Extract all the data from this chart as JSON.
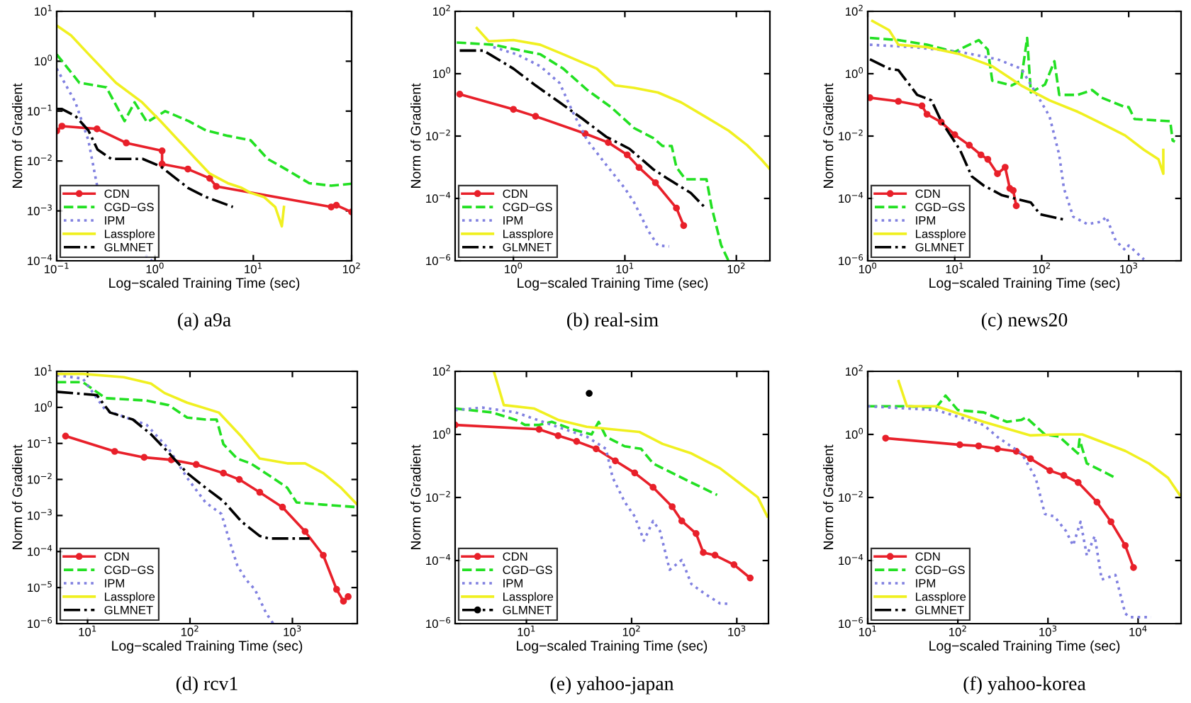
{
  "chart_data": [
    {
      "type": "line",
      "title": "(a) a9a",
      "xlabel": "Log−scaled Training Time (sec)",
      "ylabel": "Norm of Gradient",
      "log": "xy",
      "legend": "bottom left",
      "grid": false,
      "xlim": [
        0.1,
        100
      ],
      "ylim": [
        0.0001,
        10
      ],
      "xticks": [
        {
          "value": 0.1,
          "label": "10$^{−1}$"
        },
        {
          "value": 1,
          "label": "10$^{0}$"
        },
        {
          "value": 10,
          "label": "10$^{1}$"
        },
        {
          "value": 100,
          "label": "10$^{2}$"
        }
      ],
      "yticks": [
        {
          "value": 0.0001,
          "label": "10$^{−4}$"
        },
        {
          "value": 0.001,
          "label": "10$^{−3}$"
        },
        {
          "value": 0.01,
          "label": "10$^{−2}$"
        },
        {
          "value": 0.1,
          "label": "10$^{−1}$"
        },
        {
          "value": 1,
          "label": "10$^{0}$"
        },
        {
          "value": 10,
          "label": "10$^{1}$"
        }
      ],
      "series": [
        {
          "name": "CDN",
          "color": "#e8202a",
          "line_style": "solid",
          "marker": "circle",
          "x": [
            0.1,
            0.113,
            0.257,
            0.51,
            1.18,
            1.18,
            2.16,
            3.6,
            4.2,
            62,
            70,
            100
          ],
          "values": [
            0.04,
            0.05,
            0.044,
            0.023,
            0.016,
            0.0087,
            0.0069,
            0.0045,
            0.0031,
            0.0012,
            0.0013,
            0.00095
          ]
        },
        {
          "name": "CGD−GS",
          "color": "#22e022",
          "line_style": "dashed",
          "marker": "none",
          "x": [
            0.1,
            0.17,
            0.32,
            0.49,
            0.62,
            0.83,
            1.27,
            2.2,
            3.3,
            5.5,
            9.4,
            14,
            21,
            37,
            62,
            100
          ],
          "values": [
            1.37,
            0.37,
            0.3,
            0.063,
            0.15,
            0.06,
            0.1,
            0.063,
            0.041,
            0.032,
            0.026,
            0.011,
            0.007,
            0.0036,
            0.0032,
            0.0035
          ]
        },
        {
          "name": "IPM",
          "color": "#8080e0",
          "line_style": "dotted",
          "marker": "none",
          "x": [
            0.1,
            0.155,
            0.21,
            0.26,
            0.45,
            0.8,
            0.93
          ],
          "values": [
            0.71,
            0.15,
            0.026,
            0.0029,
            null,
            0.00013,
            0.0001
          ]
        },
        {
          "name": "Lassplore",
          "color": "#f0f020",
          "line_style": "solid",
          "marker": "none",
          "x": [
            0.1,
            0.14,
            0.21,
            0.4,
            0.74,
            1.14,
            1.73,
            2.6,
            3.6,
            5.5,
            7.6,
            9.4,
            12.8,
            16.7,
            19.5,
            20.5
          ],
          "values": [
            5.2,
            3.3,
            1.4,
            0.37,
            0.15,
            0.063,
            0.026,
            0.011,
            0.0056,
            0.0036,
            0.0029,
            0.0023,
            0.0019,
            0.0012,
            0.00049,
            0.0012
          ]
        },
        {
          "name": "GLMNET",
          "color": "#000000",
          "line_style": "dashdot",
          "marker": "none",
          "x": [
            0.1,
            0.113,
            0.155,
            0.21,
            0.26,
            0.36,
            0.75,
            1.14,
            2.16,
            3.3,
            6.2
          ],
          "values": [
            0.11,
            0.11,
            0.08,
            0.041,
            0.017,
            0.011,
            0.011,
            0.0078,
            0.0029,
            0.0019,
            0.0012
          ]
        }
      ]
    },
    {
      "type": "line",
      "title": "(b) real-sim",
      "xlabel": "Log−scaled Training Time (sec)",
      "ylabel": "Norm of Gradient",
      "log": "xy",
      "legend": "bottom left",
      "grid": false,
      "xlim": [
        0.3,
        200
      ],
      "ylim": [
        1e-06,
        100
      ],
      "xticks": [
        {
          "value": 1,
          "label": "10$^{0}$"
        },
        {
          "value": 10,
          "label": "10$^{1}$"
        },
        {
          "value": 100,
          "label": "10$^{2}$"
        }
      ],
      "yticks": [
        {
          "value": 1e-06,
          "label": "10$^{−6}$"
        },
        {
          "value": 0.0001,
          "label": "10$^{−4}$"
        },
        {
          "value": 0.01,
          "label": "10$^{−2}$"
        },
        {
          "value": 1,
          "label": "10$^{0}$"
        },
        {
          "value": 100,
          "label": "10$^{2}$"
        }
      ],
      "series": [
        {
          "name": "CDN",
          "color": "#e8202a",
          "line_style": "solid",
          "marker": "circle",
          "x": [
            0.33,
            1,
            1.58,
            4.4,
            7.1,
            10.5,
            13.4,
            18.8,
            29,
            33.7
          ],
          "values": [
            0.22,
            0.072,
            0.043,
            0.012,
            0.0062,
            0.0025,
            0.00098,
            0.00032,
            4.9e-05,
            1.35e-05
          ]
        },
        {
          "name": "CGD−GS",
          "color": "#22e022",
          "line_style": "dashed",
          "marker": "none",
          "x": [
            0.31,
            0.66,
            1.07,
            1.74,
            2.8,
            4.6,
            7.5,
            12.1,
            17.9,
            21.8,
            26.3,
            29,
            35,
            54,
            60,
            73,
            85
          ],
          "values": [
            10,
            8.5,
            5.9,
            4.2,
            1.45,
            0.3,
            0.085,
            0.018,
            0.0087,
            0.0048,
            0.0048,
            0.001,
            0.00041,
            0.00041,
            5.3e-05,
            3.2e-06,
            1e-06
          ]
        },
        {
          "name": "IPM",
          "color": "#8080e0",
          "line_style": "dotted",
          "marker": "none",
          "x": [
            0.66,
            1.07,
            1.74,
            2.6,
            3.4,
            4.6,
            6.8,
            10,
            12.1,
            16.3,
            19.8,
            25
          ],
          "values": [
            7.1,
            4.2,
            1.74,
            0.5,
            0.06,
            0.0072,
            0.0012,
            0.00021,
            7.4e-05,
            8.9e-06,
            3.1e-06,
            2.9e-06
          ]
        },
        {
          "name": "Lassplore",
          "color": "#f0f020",
          "line_style": "solid",
          "marker": "none",
          "x": [
            0.47,
            0.6,
            1,
            1.74,
            2.8,
            5.6,
            8.2,
            12.1,
            19.8,
            32,
            52,
            85,
            125,
            167,
            200
          ],
          "values": [
            29,
            11,
            12,
            8.5,
            4.2,
            1.45,
            0.42,
            0.35,
            0.25,
            0.12,
            0.043,
            0.015,
            0.0051,
            0.0018,
            0.00087
          ]
        },
        {
          "name": "GLMNET",
          "color": "#000000",
          "line_style": "dashdot",
          "marker": "none",
          "x": [
            0.33,
            0.54,
            1,
            1.58,
            2.6,
            4.2,
            6.8,
            11,
            17.9,
            24,
            39,
            52
          ],
          "values": [
            5.5,
            5.5,
            1.45,
            0.42,
            0.12,
            0.035,
            0.0095,
            0.0039,
            0.00087,
            0.00044,
            0.00015,
            5.2e-05
          ]
        }
      ]
    },
    {
      "type": "line",
      "title": "(c) news20",
      "xlabel": "Log−scaled Training Time (sec)",
      "ylabel": "Norm of Gradient",
      "log": "xy",
      "legend": "bottom left",
      "grid": false,
      "xlim": [
        1,
        4000
      ],
      "ylim": [
        1e-06,
        100
      ],
      "xticks": [
        {
          "value": 1,
          "label": "10$^{0}$"
        },
        {
          "value": 10,
          "label": "10$^{1}$"
        },
        {
          "value": 100,
          "label": "10$^{2}$"
        },
        {
          "value": 1000,
          "label": "10$^{3}$"
        }
      ],
      "yticks": [
        {
          "value": 1e-06,
          "label": "10$^{−6}$"
        },
        {
          "value": 0.0001,
          "label": "10$^{−4}$"
        },
        {
          "value": 0.01,
          "label": "10$^{−2}$"
        },
        {
          "value": 1,
          "label": "10$^{0}$"
        },
        {
          "value": 100,
          "label": "10$^{2}$"
        }
      ],
      "series": [
        {
          "name": "CDN",
          "color": "#e8202a",
          "line_style": "solid",
          "marker": "circle",
          "x": [
            1.06,
            2.25,
            4.2,
            4.8,
            7,
            10,
            14.7,
            20,
            24,
            31,
            38,
            43,
            47,
            51
          ],
          "values": [
            0.17,
            0.13,
            0.093,
            0.05,
            0.028,
            0.011,
            0.0051,
            0.0025,
            0.0018,
            0.00062,
            0.001,
            0.00021,
            0.00018,
            5.8e-05
          ]
        },
        {
          "name": "CGD−GS",
          "color": "#22e022",
          "line_style": "dashed",
          "marker": "none",
          "x": [
            1.06,
            2.25,
            4.8,
            10,
            14.7,
            18.9,
            24,
            27,
            45,
            58,
            68,
            75,
            109,
            140,
            159,
            260,
            380,
            490,
            910,
            1000,
            1170,
            3000,
            3200,
            3400
          ],
          "values": [
            14,
            12,
            8.5,
            5,
            8.5,
            12,
            5.9,
            0.6,
            0.42,
            0.6,
            14,
            0.25,
            0.45,
            2.5,
            0.21,
            0.21,
            0.3,
            0.17,
            0.085,
            0.085,
            0.035,
            0.03,
            0.0072,
            0.0066
          ]
        },
        {
          "name": "IPM",
          "color": "#8080e0",
          "line_style": "dotted",
          "marker": "none",
          "x": [
            1.06,
            3.3,
            11.5,
            31,
            58,
            85,
            123,
            159,
            180,
            230,
            335,
            490,
            550,
            710,
            910,
            1000,
            1500
          ],
          "values": [
            8.5,
            7.1,
            5,
            2.9,
            1.45,
            0.25,
            0.043,
            0.0025,
            0.00021,
            2.6e-05,
            1.5e-05,
            1.8e-05,
            2.6e-05,
            4.4e-06,
            2.2e-06,
            3.1e-06,
            1.1e-06
          ]
        },
        {
          "name": "Lassplore",
          "color": "#f0f020",
          "line_style": "solid",
          "marker": "none",
          "x": [
            1.13,
            1.76,
            2.25,
            4.8,
            11.5,
            27,
            58,
            123,
            260,
            490,
            910,
            1500,
            2200,
            2500,
            2500
          ],
          "values": [
            49,
            25,
            8.5,
            7.1,
            4.2,
            1.74,
            0.42,
            0.14,
            0.06,
            0.025,
            0.0105,
            0.0036,
            0.0018,
            0.00062,
            0.0036
          ]
        },
        {
          "name": "GLMNET",
          "color": "#000000",
          "line_style": "dashdot",
          "marker": "none",
          "x": [
            1.06,
            1.76,
            2.25,
            3.7,
            5.4,
            7,
            11.5,
            15.7,
            21.5,
            35,
            75,
            96,
            180
          ],
          "values": [
            2.9,
            1.45,
            1.3,
            0.21,
            0.14,
            0.03,
            0.0036,
            0.00051,
            0.00026,
            0.000126,
            7.4e-05,
            3.1e-05,
            2.1e-05
          ]
        }
      ]
    },
    {
      "type": "line",
      "title": "(d) rcv1",
      "xlabel": "Log−scaled Training Time (sec)",
      "ylabel": "Norm of Gradient",
      "log": "xy",
      "legend": "bottom left",
      "grid": false,
      "xlim": [
        5,
        4300
      ],
      "ylim": [
        1e-06,
        10
      ],
      "xticks": [
        {
          "value": 10,
          "label": "10$^{1}$"
        },
        {
          "value": 100,
          "label": "10$^{2}$"
        },
        {
          "value": 1000,
          "label": "10$^{3}$"
        }
      ],
      "yticks": [
        {
          "value": 1e-06,
          "label": "10$^{−6}$"
        },
        {
          "value": 1e-05,
          "label": "10$^{−5}$"
        },
        {
          "value": 0.0001,
          "label": "10$^{−4}$"
        },
        {
          "value": 0.001,
          "label": "10$^{−3}$"
        },
        {
          "value": 0.01,
          "label": "10$^{−2}$"
        },
        {
          "value": 0.1,
          "label": "10$^{−1}$"
        },
        {
          "value": 1,
          "label": "10$^{0}$"
        },
        {
          "value": 10,
          "label": "10$^{1}$"
        }
      ],
      "series": [
        {
          "name": "CDN",
          "color": "#e8202a",
          "line_style": "solid",
          "marker": "circle",
          "x": [
            6.1,
            18.4,
            35.7,
            65.8,
            115,
            212,
            303,
            480,
            800,
            1330,
            2000,
            2700,
            3150,
            3500
          ],
          "values": [
            0.16,
            0.06,
            0.041,
            0.035,
            0.026,
            0.015,
            0.01,
            0.0044,
            0.0017,
            0.00036,
            7.9e-05,
            8.9e-06,
            4.2e-06,
            5.6e-06
          ]
        },
        {
          "name": "CGD−GS",
          "color": "#22e022",
          "line_style": "dashed",
          "marker": "none",
          "x": [
            5,
            9,
            15,
            37.6,
            62,
            94,
            142,
            182,
            212,
            289,
            390,
            590,
            890,
            1100,
            2000,
            4300
          ],
          "values": [
            5,
            5,
            1.8,
            1.55,
            1.15,
            0.52,
            0.46,
            0.46,
            0.095,
            0.038,
            0.028,
            0.013,
            0.0059,
            0.0023,
            0.002,
            0.0017
          ]
        },
        {
          "name": "IPM",
          "color": "#8080e0",
          "line_style": "dotted",
          "marker": "none",
          "x": [
            5,
            9,
            15,
            37.6,
            62,
            94,
            142,
            203,
            235,
            289,
            350,
            430,
            557,
            650
          ],
          "values": [
            7.8,
            6.3,
            0.83,
            0.33,
            0.071,
            0.011,
            0.0023,
            0.0011,
            0.00027,
            4.2e-05,
            1.7e-05,
            8.9e-06,
            1.9e-06,
            1e-06
          ]
        },
        {
          "name": "Lassplore",
          "color": "#f0f020",
          "line_style": "solid",
          "marker": "none",
          "x": [
            5,
            9,
            22.6,
            41.6,
            56.5,
            94,
            191,
            318,
            480,
            890,
            1330,
            2000,
            2980,
            4300
          ],
          "values": [
            8.5,
            8.5,
            6.9,
            4.6,
            2.5,
            1.35,
            0.72,
            0.155,
            0.038,
            0.028,
            0.028,
            0.015,
            0.0059,
            0.002
          ]
        },
        {
          "name": "GLMNET",
          "color": "#000000",
          "line_style": "dashdot",
          "marker": "none",
          "x": [
            5,
            12.3,
            16.6,
            27.7,
            41.6,
            62,
            94,
            142,
            212,
            318,
            480,
            590,
            1470
          ],
          "values": [
            2.7,
            2.2,
            0.72,
            0.46,
            0.18,
            0.055,
            0.015,
            0.0059,
            0.0025,
            0.00068,
            0.00027,
            0.00023,
            0.00023
          ]
        }
      ]
    },
    {
      "type": "line",
      "title": "(e) yahoo-japan",
      "xlabel": "Log−scaled Training Time (sec)",
      "ylabel": "Norm of Gradient",
      "log": "xy",
      "legend": "bottom left",
      "grid": false,
      "xlim": [
        2.1,
        2000
      ],
      "ylim": [
        1e-06,
        100
      ],
      "xticks": [
        {
          "value": 10,
          "label": "10$^{1}$"
        },
        {
          "value": 100,
          "label": "10$^{2}$"
        },
        {
          "value": 1000,
          "label": "10$^{3}$"
        }
      ],
      "yticks": [
        {
          "value": 1e-06,
          "label": "10$^{−6}$"
        },
        {
          "value": 0.0001,
          "label": "10$^{−4}$"
        },
        {
          "value": 0.01,
          "label": "10$^{−2}$"
        },
        {
          "value": 1,
          "label": "10$^{0}$"
        },
        {
          "value": 100,
          "label": "10$^{2}$"
        }
      ],
      "series": [
        {
          "name": "CDN",
          "color": "#e8202a",
          "line_style": "solid",
          "marker": "circle",
          "x": [
            2.1,
            13.2,
            20,
            30,
            46,
            70,
            107,
            160,
            243,
            300,
            410,
            480,
            620,
            940,
            1340
          ],
          "values": [
            2.0,
            1.45,
            0.91,
            0.6,
            0.35,
            0.145,
            0.06,
            0.021,
            0.0051,
            0.0018,
            0.00072,
            0.00018,
            0.000148,
            7.4e-05,
            2.8e-05
          ]
        },
        {
          "name": "CGD−GS",
          "color": "#22e022",
          "line_style": "dashed",
          "marker": "none",
          "x": [
            2.1,
            4.7,
            7.9,
            9.7,
            13.2,
            17.4,
            27.4,
            41.6,
            48.6,
            57,
            86,
            123,
            160,
            243,
            370,
            650
          ],
          "values": [
            6.6,
            5,
            2.9,
            2.0,
            2.0,
            2.5,
            1.45,
            1.0,
            2.5,
            0.85,
            0.42,
            0.35,
            0.12,
            0.06,
            0.03,
            0.012
          ]
        },
        {
          "name": "IPM",
          "color": "#8080e0",
          "line_style": "dotted",
          "marker": "none",
          "x": [
            2.1,
            3.8,
            7.9,
            17.4,
            37.4,
            57,
            66,
            86,
            107,
            131,
            160,
            186,
            230,
            300,
            370,
            500,
            690,
            890
          ],
          "values": [
            5.9,
            7.1,
            5,
            2.0,
            0.85,
            0.35,
            0.043,
            0.0072,
            0.0025,
            0.00043,
            0.0018,
            0.00087,
            5.1e-05,
            0.000105,
            1.8e-05,
            8.7e-06,
            4.4e-06,
            4.2e-06
          ]
        },
        {
          "name": "Lassplore",
          "color": "#f0f020",
          "line_style": "solid",
          "marker": "none",
          "x": [
            4.9,
            6.1,
            11.9,
            20,
            37.4,
            118,
            197,
            370,
            690,
            1040,
            1580,
            1950
          ],
          "values": [
            100,
            8.5,
            6.6,
            2.9,
            1.74,
            1.2,
            0.5,
            0.25,
            0.085,
            0.03,
            0.0102,
            0.0025
          ]
        },
        {
          "name": "GLMNET",
          "color": "#000000",
          "line_style": "dashdot",
          "marker": "circle",
          "x": [
            39.5
          ],
          "values": [
            20
          ]
        }
      ]
    },
    {
      "type": "line",
      "title": "(f) yahoo-korea",
      "xlabel": "Log−scaled Training Time (sec)",
      "ylabel": "Norm of Gradient",
      "log": "xy",
      "legend": "bottom left",
      "grid": false,
      "xlim": [
        10,
        30000
      ],
      "ylim": [
        1e-06,
        100
      ],
      "xticks": [
        {
          "value": 10,
          "label": "10$^{1}$"
        },
        {
          "value": 100,
          "label": "10$^{2}$"
        },
        {
          "value": 1000,
          "label": "10$^{3}$"
        },
        {
          "value": 10000,
          "label": "10$^{4}$"
        }
      ],
      "yticks": [
        {
          "value": 1e-06,
          "label": "10$^{−6}$"
        },
        {
          "value": 0.0001,
          "label": "10$^{−4}$"
        },
        {
          "value": 0.01,
          "label": "10$^{−2}$"
        },
        {
          "value": 1,
          "label": "10$^{0}$"
        },
        {
          "value": 100,
          "label": "10$^{2}$"
        }
      ],
      "series": [
        {
          "name": "CDN",
          "color": "#e8202a",
          "line_style": "solid",
          "marker": "circle",
          "x": [
            15.8,
            105,
            170,
            275,
            445,
            640,
            1050,
            1500,
            2160,
            3500,
            5000,
            7200,
            8900
          ],
          "values": [
            0.76,
            0.47,
            0.43,
            0.35,
            0.29,
            0.17,
            0.071,
            0.05,
            0.03,
            0.0071,
            0.0017,
            0.0003,
            6e-05
          ]
        },
        {
          "name": "CGD−GS",
          "color": "#22e022",
          "line_style": "dashed",
          "marker": "none",
          "x": [
            10,
            28,
            57.5,
            73,
            100,
            193,
            350,
            510,
            570,
            925,
            1330,
            2150,
            2240,
            2700,
            4400,
            5600
          ],
          "values": [
            7.8,
            7.8,
            7.1,
            17,
            5.9,
            5,
            2.5,
            2.9,
            3.5,
            1,
            0.85,
            0.25,
            0.7,
            0.12,
            0.06,
            0.042
          ]
        },
        {
          "name": "IPM",
          "color": "#8080e0",
          "line_style": "dotted",
          "marker": "none",
          "x": [
            10,
            57.5,
            105,
            193,
            275,
            510,
            730,
            925,
            1180,
            1590,
            1900,
            2300,
            2700,
            3300,
            3950,
            5600,
            7200,
            8100,
            14000
          ],
          "values": [
            7.8,
            5.9,
            3.5,
            2.0,
            0.83,
            0.25,
            0.042,
            0.003,
            0.0025,
            0.00085,
            0.0003,
            0.0017,
            0.000145,
            0.0006,
            2.5e-05,
            3.5e-05,
            2.1e-06,
            1.6e-06,
            1.6e-06
          ]
        },
        {
          "name": "Lassplore",
          "color": "#f0f020",
          "line_style": "solid",
          "marker": "none",
          "x": [
            22,
            27.2,
            57.5,
            193,
            640,
            1330,
            2400,
            3900,
            7200,
            13200,
            21500,
            29000
          ],
          "values": [
            49,
            7.8,
            7.8,
            2.5,
            0.93,
            1.0,
            1.0,
            0.59,
            0.3,
            0.12,
            0.042,
            0.012
          ]
        },
        {
          "name": "GLMNET",
          "color": "#000000",
          "line_style": "dashdot",
          "marker": "none"
        }
      ]
    }
  ]
}
